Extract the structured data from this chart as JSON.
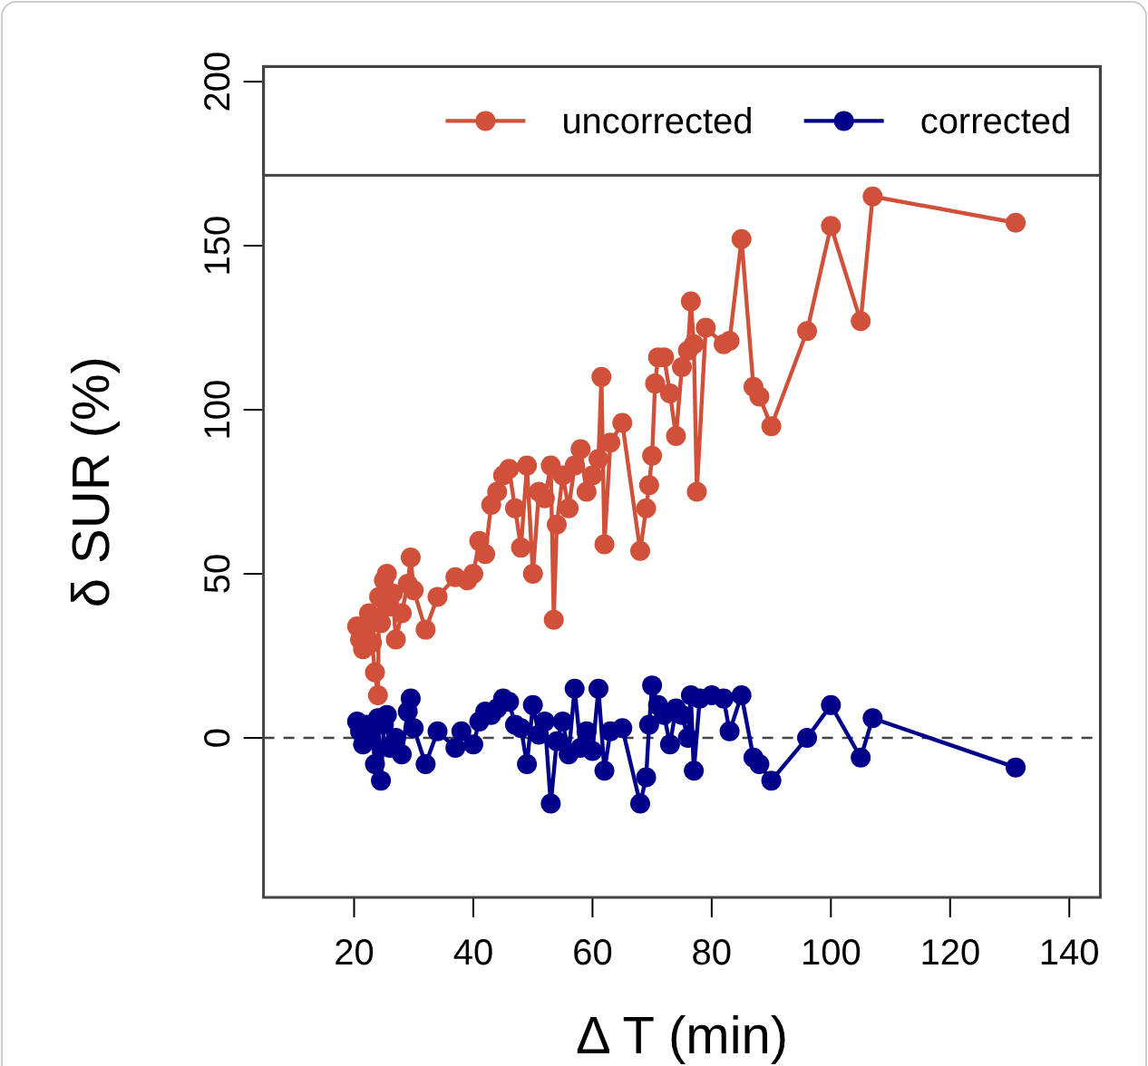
{
  "chart_data": {
    "type": "line",
    "xlabel": "Δ T (min)",
    "ylabel": "δ SUR (%)",
    "xlim": [
      4.8,
      145.2
    ],
    "xticks": [
      20,
      40,
      60,
      80,
      100,
      120,
      140
    ],
    "ylim": [
      -48.6,
      204.6
    ],
    "yticks": [
      0,
      50,
      100,
      150,
      200
    ],
    "grid": false,
    "legend": "top right",
    "marker": "circle",
    "line_style": "solid",
    "ref_lines": [
      {
        "axis": "y",
        "value": 0,
        "line_style": "dashed",
        "color": "#444444"
      }
    ],
    "series": [
      {
        "name": "uncorrected",
        "color": "#d0503a",
        "x": [
          20.5,
          21,
          21.5,
          22,
          22.5,
          23,
          23.5,
          24,
          24.2,
          24.5,
          25,
          25.5,
          26,
          26.5,
          27,
          28,
          29,
          29.5,
          30,
          32,
          34,
          37,
          39,
          40,
          41,
          42,
          43,
          44,
          45,
          46,
          47,
          48,
          49,
          50,
          51,
          52,
          53,
          53.5,
          54,
          55,
          56,
          57,
          58,
          59,
          60,
          61,
          61.5,
          62,
          63,
          65,
          68,
          69,
          69.5,
          70,
          70.5,
          71,
          72,
          73,
          74,
          75,
          76,
          76.5,
          77,
          77.5,
          79,
          82,
          83,
          85,
          87,
          88,
          90,
          96,
          100,
          105,
          107,
          131
        ],
        "values": [
          34,
          30,
          27,
          33,
          38,
          29,
          20,
          13,
          43,
          35,
          48,
          50,
          40,
          44,
          30,
          38,
          47,
          55,
          45,
          33,
          43,
          49,
          48,
          50,
          60,
          56,
          71,
          75,
          80,
          82,
          70,
          58,
          83,
          50,
          75,
          73,
          83,
          36,
          65,
          80,
          70,
          83,
          88,
          75,
          80,
          85,
          110,
          59,
          90,
          96,
          57,
          70,
          77,
          86,
          108,
          116,
          116,
          105,
          92,
          113,
          118,
          133,
          120,
          75,
          125,
          120,
          121,
          152,
          107,
          104,
          95,
          124,
          156,
          127,
          165,
          157
        ]
      },
      {
        "name": "corrected",
        "color": "#00008b",
        "x": [
          20.5,
          21,
          21.5,
          22,
          22.5,
          23,
          23.5,
          24,
          24.5,
          25,
          25.5,
          26,
          27,
          28,
          29,
          29.5,
          30,
          32,
          34,
          37,
          38,
          40,
          41,
          42,
          43,
          44,
          45,
          46,
          47,
          48,
          49,
          50,
          51,
          52,
          53,
          54,
          55,
          56,
          57,
          58,
          59,
          60,
          61,
          62,
          63,
          65,
          68,
          69,
          69.5,
          70,
          71,
          72,
          73,
          74,
          75,
          76,
          76.5,
          77,
          78,
          80,
          82,
          83,
          85,
          87,
          88,
          90,
          96,
          100,
          105,
          107,
          131
        ],
        "values": [
          5,
          2,
          -2,
          4,
          0,
          3,
          -8,
          6,
          -13,
          4,
          7,
          -3,
          0,
          -5,
          8,
          12,
          3,
          -8,
          2,
          -3,
          2,
          -2,
          5,
          8,
          7,
          9,
          12,
          11,
          4,
          3,
          -8,
          10,
          1,
          5,
          -20,
          -1,
          5,
          -5,
          15,
          -3,
          2,
          -4,
          15,
          -10,
          2,
          3,
          -20,
          -12,
          4,
          16,
          10,
          7,
          -2,
          9,
          7,
          0,
          13,
          -10,
          12,
          13,
          12,
          2,
          13,
          -6,
          -8,
          -13,
          0,
          10,
          -6,
          6,
          -9
        ]
      }
    ]
  }
}
